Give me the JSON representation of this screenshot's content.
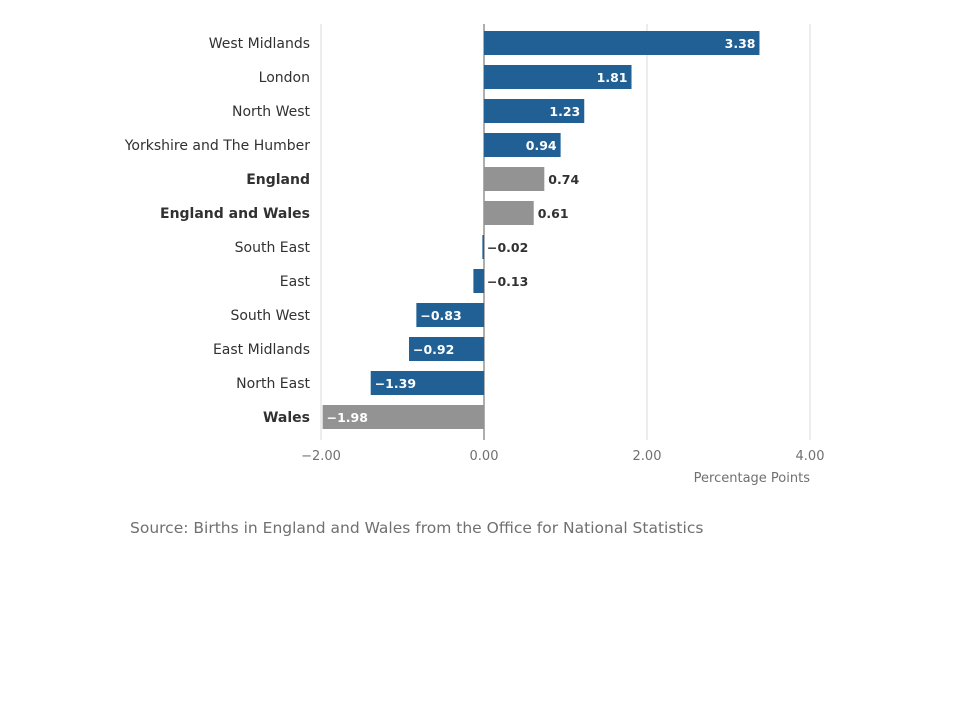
{
  "chart_data": {
    "type": "bar",
    "orientation": "horizontal",
    "categories": [
      "West Midlands",
      "London",
      "North West",
      "Yorkshire and The Humber",
      "England",
      "England and Wales",
      "South East",
      "East",
      "South West",
      "East Midlands",
      "North East",
      "Wales"
    ],
    "values": [
      3.38,
      1.81,
      1.23,
      0.94,
      0.74,
      0.61,
      -0.02,
      -0.13,
      -0.83,
      -0.92,
      -1.39,
      -1.98
    ],
    "value_labels": [
      "3.38",
      "1.81",
      "1.23",
      "0.94",
      "0.74",
      "0.61",
      "−0.02",
      "−0.13",
      "−0.83",
      "−0.92",
      "−1.39",
      "−1.98"
    ],
    "highlighted": [
      "England",
      "England and Wales",
      "Wales"
    ],
    "xlim": [
      -2,
      4
    ],
    "xticks": [
      -2,
      0,
      2,
      4
    ],
    "xtick_labels": [
      "−2.00",
      "0.00",
      "2.00",
      "4.00"
    ],
    "xlabel": "Percentage Points",
    "ylabel": "",
    "grid": "vertical",
    "colors": {
      "region": "#206095",
      "aggregate": "#939393",
      "axis": "#bebebe",
      "zero": "#949494"
    }
  },
  "source": "Source: Births in England and Wales from the Office for National Statistics"
}
